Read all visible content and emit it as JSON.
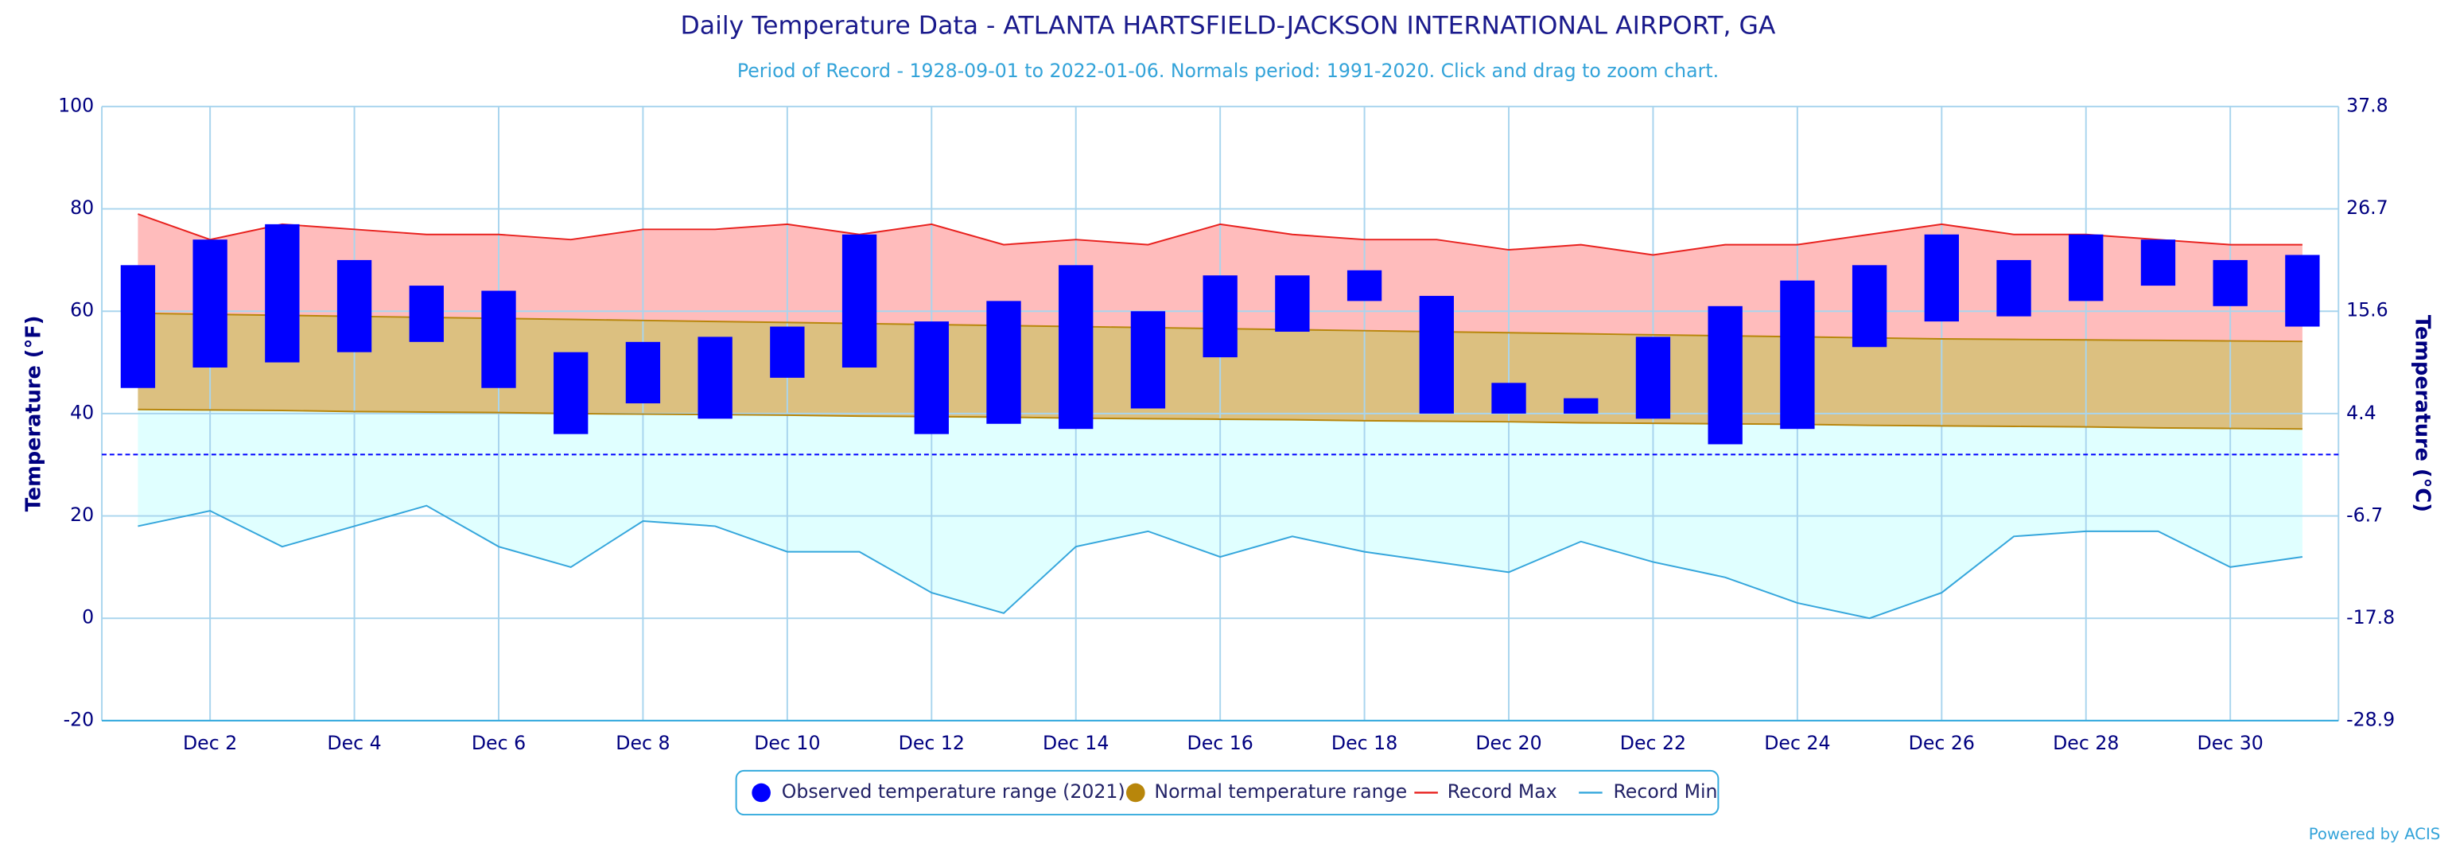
{
  "chart_data": {
    "type": "range",
    "title": "Daily Temperature Data - ATLANTA HARTSFIELD-JACKSON INTERNATIONAL AIRPORT, GA",
    "subtitle": "Period of Record - 1928-09-01 to 2022-01-06. Normals period: 1991-2020. Click and drag to zoom chart.",
    "y_label": "Temperature (°F)",
    "y2_label": "Temperature (°C)",
    "credit": "Powered by ACIS",
    "categories": [
      null,
      "Dec 2",
      null,
      "Dec 4",
      null,
      "Dec 6",
      null,
      "Dec 8",
      null,
      "Dec 10",
      null,
      "Dec 12",
      null,
      "Dec 14",
      null,
      "Dec 16",
      null,
      "Dec 18",
      null,
      "Dec 20",
      null,
      "Dec 22",
      null,
      "Dec 24",
      null,
      "Dec 26",
      null,
      "Dec 28",
      null,
      "Dec 30",
      null
    ],
    "ylim": [
      -20,
      100
    ],
    "yticks": [
      -20,
      0,
      20,
      40,
      60,
      80,
      100
    ],
    "y2lim": [
      -28.9,
      37.8
    ],
    "y2ticks": [
      -28.9,
      -17.8,
      -6.7,
      4.4,
      15.6,
      26.7,
      37.8
    ],
    "freeze_line": 32,
    "grid": true,
    "legend": "bottom",
    "series": [
      {
        "name": "Observed temperature range (2021)",
        "color": "#0000ff",
        "low": [
          45,
          49,
          50,
          52,
          54,
          45,
          36,
          42,
          39,
          47,
          49,
          36,
          38,
          37,
          41,
          51,
          56,
          62,
          40,
          40,
          40,
          39,
          34,
          37,
          53,
          58,
          59,
          62,
          65,
          61,
          57
        ],
        "high": [
          69,
          74,
          77,
          70,
          65,
          64,
          52,
          54,
          55,
          57,
          75,
          58,
          62,
          69,
          60,
          67,
          67,
          68,
          63,
          46,
          43,
          55,
          61,
          66,
          69,
          75,
          70,
          75,
          74,
          70,
          71
        ]
      },
      {
        "name": "Normal temperature range",
        "color": "#b8860b",
        "fill": "#dcc080",
        "low": [
          40.8,
          40.7,
          40.6,
          40.4,
          40.3,
          40.2,
          40.0,
          39.9,
          39.8,
          39.7,
          39.5,
          39.4,
          39.3,
          39.1,
          39.0,
          38.9,
          38.8,
          38.6,
          38.5,
          38.4,
          38.2,
          38.1,
          38.0,
          37.9,
          37.7,
          37.6,
          37.5,
          37.4,
          37.2,
          37.1,
          37.0
        ],
        "high": [
          59.6,
          59.4,
          59.2,
          59.0,
          58.8,
          58.6,
          58.4,
          58.2,
          58.0,
          57.8,
          57.6,
          57.4,
          57.2,
          57.0,
          56.8,
          56.6,
          56.4,
          56.2,
          56.0,
          55.8,
          55.6,
          55.4,
          55.2,
          55.0,
          54.8,
          54.6,
          54.5,
          54.4,
          54.3,
          54.2,
          54.1
        ]
      },
      {
        "name": "Record Max",
        "color": "#e8211e",
        "fill": "#ffbcbc",
        "values": [
          79,
          74,
          77,
          76,
          75,
          75,
          74,
          76,
          76,
          77,
          75,
          77,
          73,
          74,
          73,
          77,
          75,
          74,
          74,
          72,
          73,
          71,
          73,
          73,
          75,
          77,
          75,
          75,
          74,
          73,
          73
        ]
      },
      {
        "name": "Record Min",
        "color": "#35a6dc",
        "fill": "#e0ffff",
        "values": [
          18,
          21,
          14,
          18,
          22,
          14,
          10,
          19,
          18,
          13,
          13,
          5,
          1,
          14,
          17,
          12,
          16,
          13,
          11,
          9,
          15,
          11,
          8,
          3,
          0,
          5,
          16,
          17,
          17,
          10,
          12
        ]
      }
    ]
  }
}
